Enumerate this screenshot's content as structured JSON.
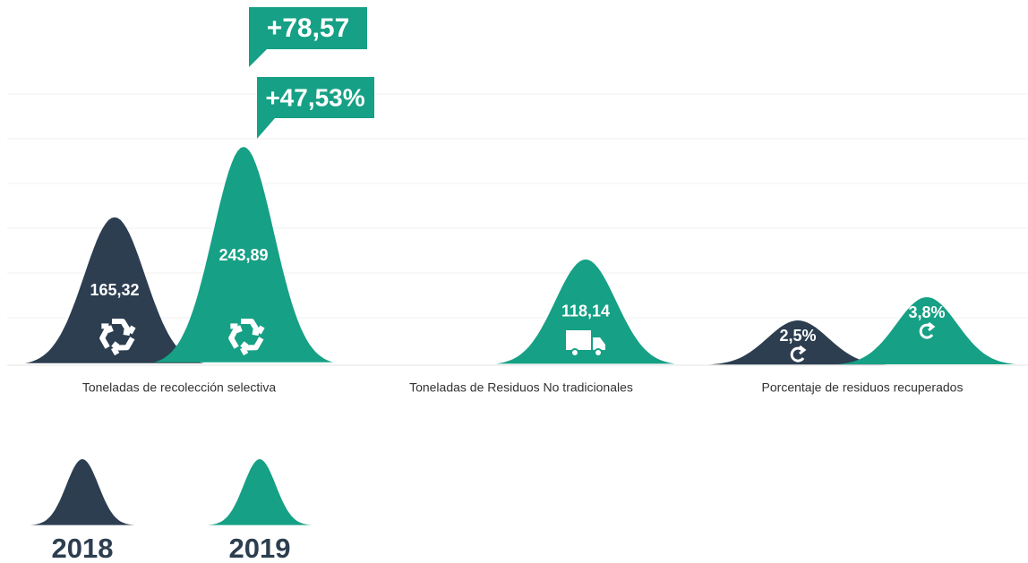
{
  "chart_data": [
    {
      "type": "bell",
      "categories": [
        "Toneladas de recolección selectiva",
        "Toneladas de Residuos No tradicionales"
      ],
      "series": [
        {
          "name": "2018",
          "color": "#2c3e50",
          "values": [
            165.32,
            null
          ],
          "value_labels": [
            "165,32",
            null
          ]
        },
        {
          "name": "2019",
          "color": "#16a085",
          "values": [
            243.89,
            118.14
          ],
          "value_labels": [
            "243,89",
            "118,14"
          ]
        }
      ],
      "ylim": [
        0,
        250
      ],
      "annotations": [
        "+78,57",
        "+47,53%"
      ]
    },
    {
      "type": "bell",
      "categories": [
        "Porcentaje de residuos recuperados"
      ],
      "series": [
        {
          "color": "#2c3e50",
          "values": [
            2.5
          ],
          "value_labels": [
            "2,5%"
          ]
        },
        {
          "color": "#16a085",
          "values": [
            3.8
          ],
          "value_labels": [
            "3,8%"
          ]
        }
      ],
      "ylim": [
        0,
        12.5
      ]
    }
  ]
}
